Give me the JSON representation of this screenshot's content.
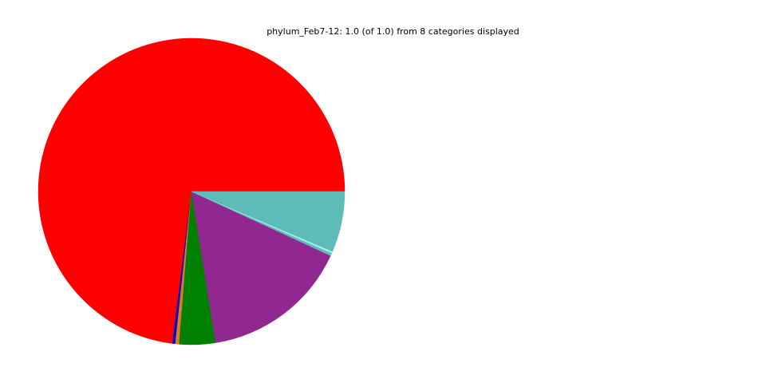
{
  "chart_data": {
    "type": "pie",
    "title": "phylum_Feb7-12: 1.0 (of 1.0) from 8 categories displayed",
    "start_angle_deg": 0,
    "direction": "counterclockwise",
    "slices": [
      {
        "value": 0.7302,
        "color": "#ff0000"
      },
      {
        "value": 0.003,
        "color": "#0000cc"
      },
      {
        "value": 0.004,
        "color": "#e07b1a"
      },
      {
        "value": 0.038,
        "color": "#008000"
      },
      {
        "value": 0.156,
        "color": "#912891"
      },
      {
        "value": 0.003,
        "color": "#5bbfbf"
      },
      {
        "value": 0.0018,
        "color": "#b5ece6"
      },
      {
        "value": 0.064,
        "color": "#5dbbb8"
      }
    ]
  }
}
